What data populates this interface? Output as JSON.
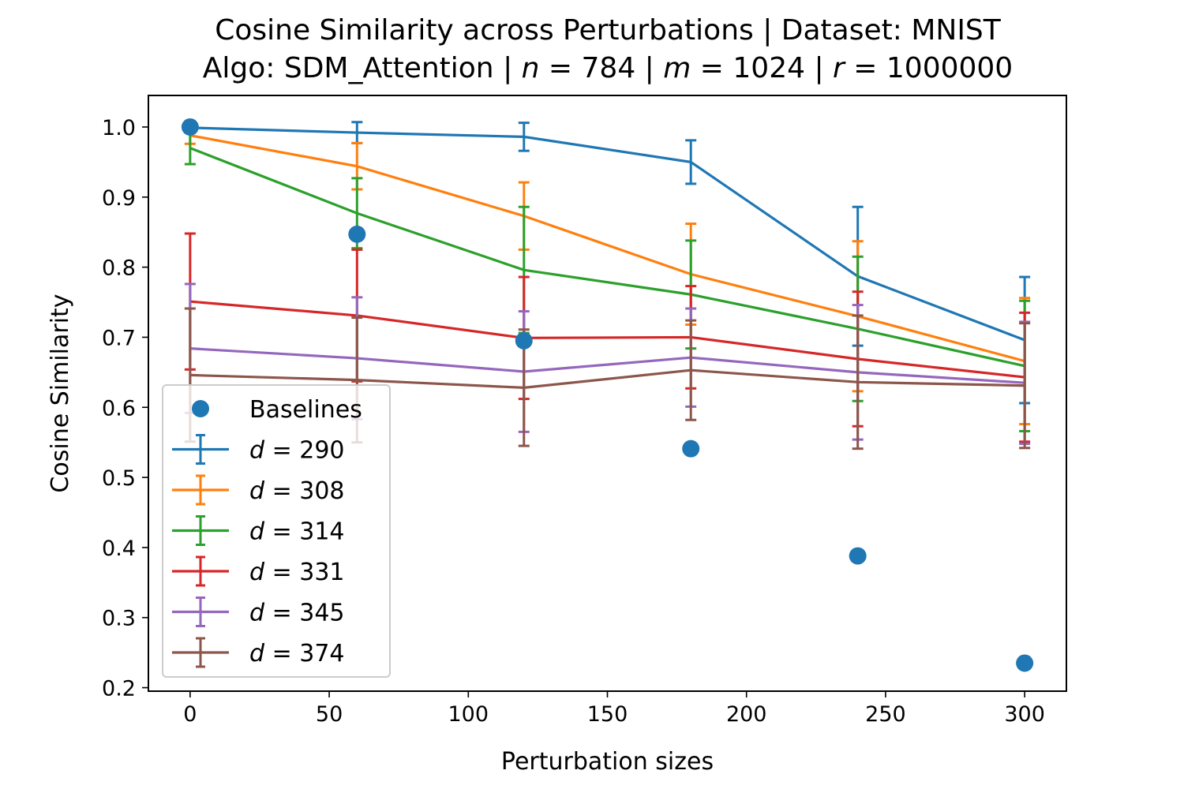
{
  "chart_data": {
    "type": "line",
    "title_line1": "Cosine Similarity across Perturbations | Dataset: MNIST",
    "title_line2_parts": [
      "Algo: SDM_Attention | ",
      "n",
      " = 784 | ",
      "m",
      " = 1024 | ",
      "r",
      " = 1000000"
    ],
    "xlabel": "Perturbation sizes",
    "ylabel": "Cosine Similarity",
    "xlim": [
      -15,
      315
    ],
    "ylim": [
      0.195,
      1.045
    ],
    "xticks": [
      0,
      50,
      100,
      150,
      200,
      250,
      300
    ],
    "xtick_labels": [
      "0",
      "50",
      "100",
      "150",
      "200",
      "250",
      "300"
    ],
    "yticks": [
      0.2,
      0.3,
      0.4,
      0.5,
      0.6,
      0.7,
      0.8,
      0.9,
      1.0
    ],
    "ytick_labels": [
      "0.2",
      "0.3",
      "0.4",
      "0.5",
      "0.6",
      "0.7",
      "0.8",
      "0.9",
      "1.0"
    ],
    "x": [
      0,
      60,
      120,
      180,
      240,
      300
    ],
    "baselines": {
      "name": "Baselines",
      "color": "#1f77b4",
      "values": [
        1.0,
        0.847,
        0.695,
        0.541,
        0.388,
        0.235
      ]
    },
    "series": [
      {
        "name": "d = 290",
        "legend_var": "d",
        "legend_num": "= 290",
        "color": "#1f77b4",
        "values": [
          0.999,
          0.992,
          0.986,
          0.95,
          0.787,
          0.696
        ],
        "errors": [
          0.0,
          0.015,
          0.02,
          0.031,
          0.099,
          0.09
        ]
      },
      {
        "name": "d = 308",
        "legend_var": "d",
        "legend_num": "= 308",
        "color": "#ff7f0e",
        "values": [
          0.988,
          0.944,
          0.873,
          0.79,
          0.73,
          0.666
        ],
        "errors": [
          0.012,
          0.033,
          0.048,
          0.072,
          0.107,
          0.09
        ]
      },
      {
        "name": "d = 314",
        "legend_var": "d",
        "legend_num": "= 314",
        "color": "#2ca02c",
        "values": [
          0.97,
          0.877,
          0.796,
          0.761,
          0.712,
          0.659
        ],
        "errors": [
          0.023,
          0.05,
          0.09,
          0.077,
          0.103,
          0.093
        ]
      },
      {
        "name": "d = 331",
        "legend_var": "d",
        "legend_num": "= 331",
        "color": "#d62728",
        "values": [
          0.751,
          0.731,
          0.699,
          0.7,
          0.669,
          0.643
        ],
        "errors": [
          0.097,
          0.094,
          0.087,
          0.073,
          0.096,
          0.092
        ]
      },
      {
        "name": "d = 345",
        "legend_var": "d",
        "legend_num": "= 345",
        "color": "#9467bd",
        "values": [
          0.684,
          0.67,
          0.651,
          0.671,
          0.65,
          0.635
        ],
        "errors": [
          0.092,
          0.087,
          0.086,
          0.07,
          0.096,
          0.087
        ]
      },
      {
        "name": "d = 374",
        "legend_var": "d",
        "legend_num": "= 374",
        "color": "#8c564b",
        "values": [
          0.646,
          0.639,
          0.628,
          0.653,
          0.636,
          0.631
        ],
        "errors": [
          0.095,
          0.089,
          0.083,
          0.071,
          0.095,
          0.089
        ]
      }
    ],
    "grid": false,
    "legend_position": "lower-left"
  }
}
